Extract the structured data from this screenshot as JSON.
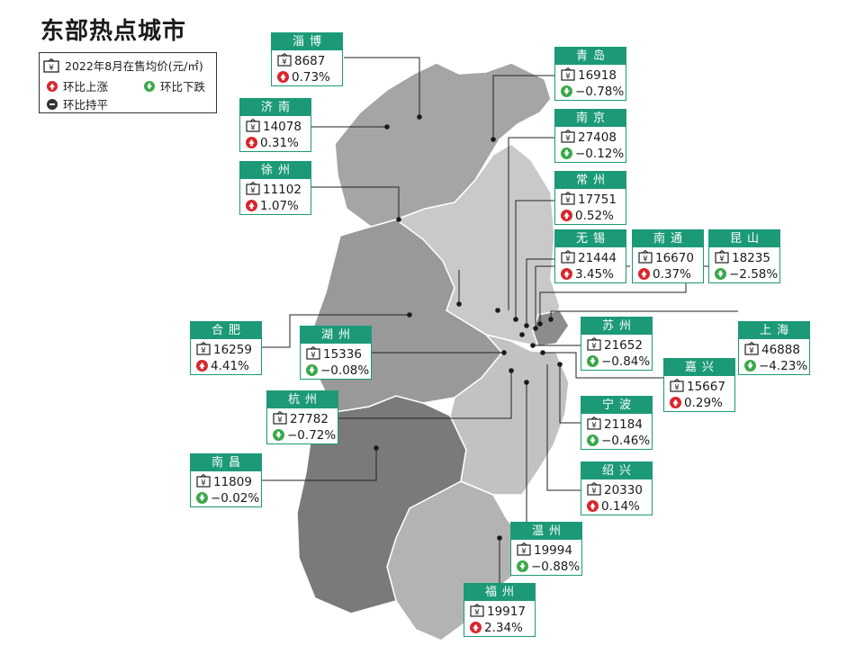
{
  "title": "东部热点城市",
  "legend": {
    "price_label": "2022年8月在售均价(元/㎡)",
    "up_label": "环比上涨",
    "down_label": "环比下跌",
    "flat_label": "环比持平"
  },
  "colors": {
    "header": "#1c9a78",
    "up": "#d9262c",
    "down": "#3aa84a",
    "flat": "#333333"
  },
  "cities": [
    {
      "name": "淄博",
      "price": "8687",
      "change": "0.73%",
      "dir": "up"
    },
    {
      "name": "青岛",
      "price": "16918",
      "change": "−0.78%",
      "dir": "down"
    },
    {
      "name": "济南",
      "price": "14078",
      "change": "0.31%",
      "dir": "up"
    },
    {
      "name": "南京",
      "price": "27408",
      "change": "−0.12%",
      "dir": "down"
    },
    {
      "name": "徐州",
      "price": "11102",
      "change": "1.07%",
      "dir": "up"
    },
    {
      "name": "常州",
      "price": "17751",
      "change": "0.52%",
      "dir": "up"
    },
    {
      "name": "无锡",
      "price": "21444",
      "change": "3.45%",
      "dir": "up"
    },
    {
      "name": "南通",
      "price": "16670",
      "change": "0.37%",
      "dir": "up"
    },
    {
      "name": "昆山",
      "price": "18235",
      "change": "−2.58%",
      "dir": "down"
    },
    {
      "name": "合肥",
      "price": "16259",
      "change": "4.41%",
      "dir": "up"
    },
    {
      "name": "湖州",
      "price": "15336",
      "change": "−0.08%",
      "dir": "down"
    },
    {
      "name": "苏州",
      "price": "21652",
      "change": "−0.84%",
      "dir": "down"
    },
    {
      "name": "上海",
      "price": "46888",
      "change": "−4.23%",
      "dir": "down"
    },
    {
      "name": "嘉兴",
      "price": "15667",
      "change": "0.29%",
      "dir": "up"
    },
    {
      "name": "杭州",
      "price": "27782",
      "change": "−0.72%",
      "dir": "down"
    },
    {
      "name": "宁波",
      "price": "21184",
      "change": "−0.46%",
      "dir": "down"
    },
    {
      "name": "南昌",
      "price": "11809",
      "change": "−0.02%",
      "dir": "down"
    },
    {
      "name": "绍兴",
      "price": "20330",
      "change": "0.14%",
      "dir": "up"
    },
    {
      "name": "温州",
      "price": "19994",
      "change": "−0.88%",
      "dir": "down"
    },
    {
      "name": "福州",
      "price": "19917",
      "change": "2.34%",
      "dir": "up"
    }
  ]
}
